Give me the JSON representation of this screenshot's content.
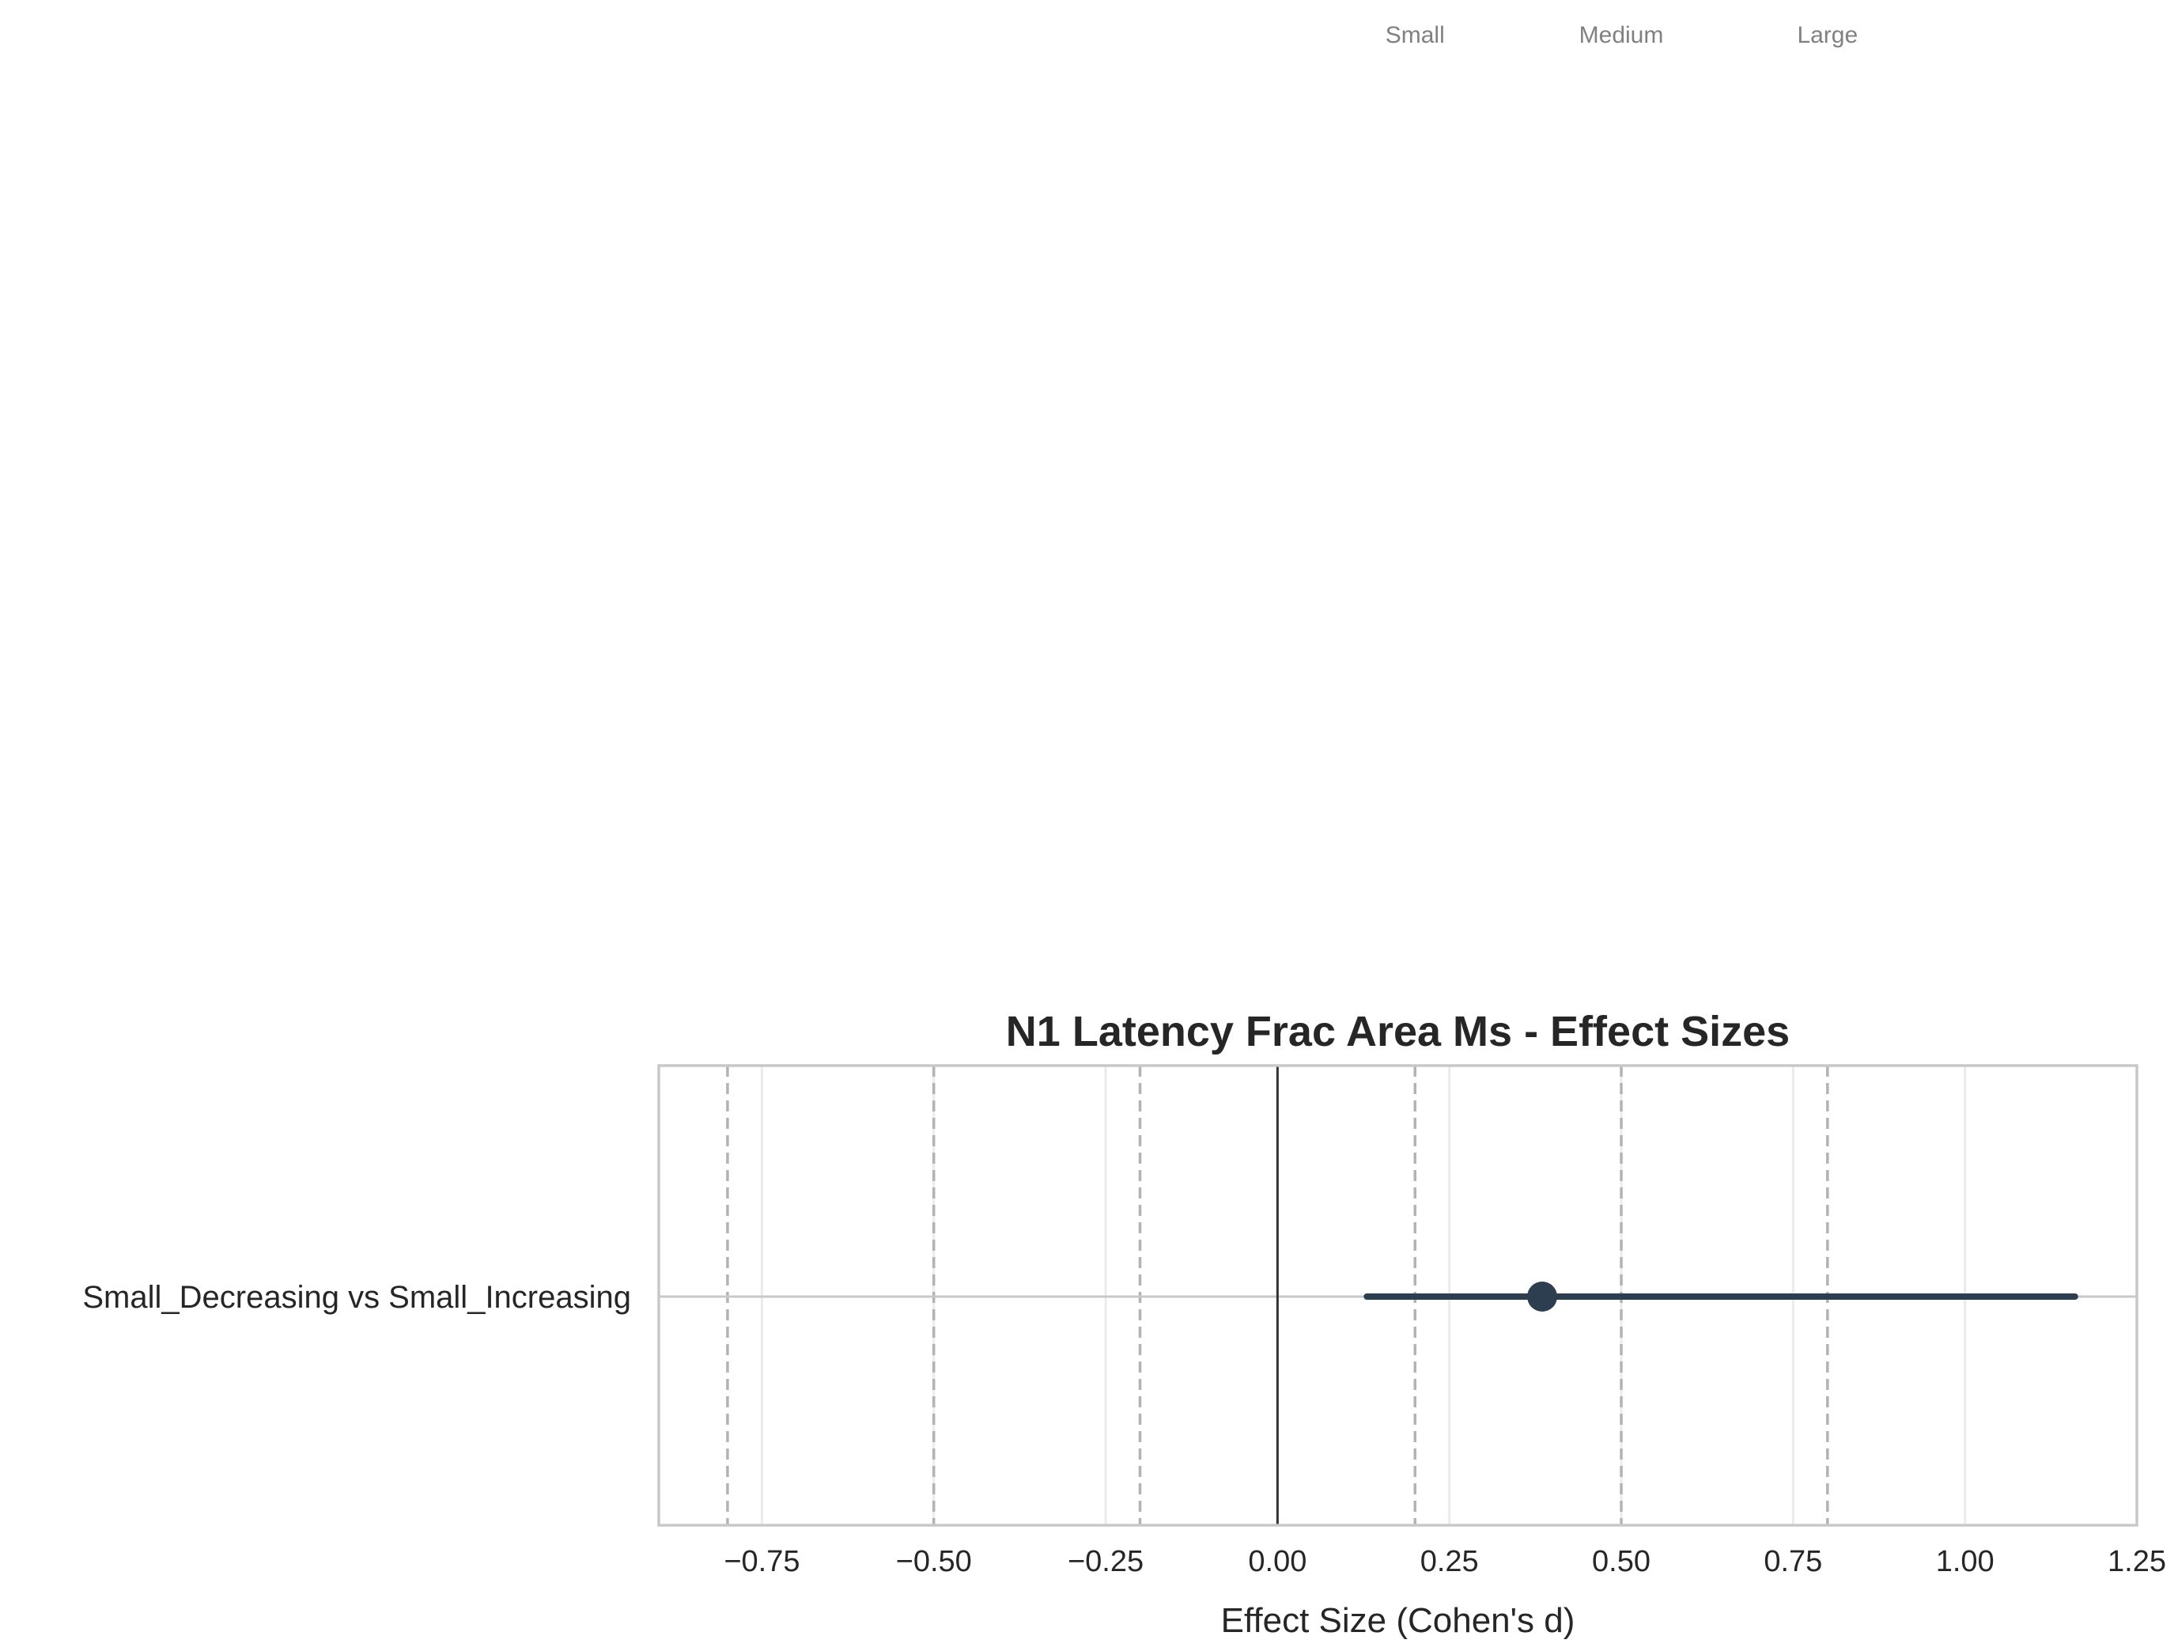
{
  "chart_data": {
    "type": "forest",
    "title": "N1 Latency Frac Area Ms - Effect Sizes",
    "xlabel": "Effect Size (Cohen's d)",
    "ylabel": "",
    "xlim": [
      -0.9,
      1.25
    ],
    "x_ticks": [
      "−0.75",
      "−0.50",
      "−0.25",
      "0.00",
      "0.25",
      "0.50",
      "0.75",
      "1.00",
      "1.25"
    ],
    "x_tick_values": [
      -0.75,
      -0.5,
      -0.25,
      0.0,
      0.25,
      0.5,
      0.75,
      1.0,
      1.25
    ],
    "grid": true,
    "comparisons": [
      {
        "label": "Small_Decreasing vs Small_Increasing",
        "d": 0.385,
        "ci": [
          0.13,
          1.16
        ]
      }
    ],
    "zero_line": 0.0,
    "reference_lines": [
      -0.8,
      -0.5,
      -0.2,
      0.2,
      0.5,
      0.8
    ],
    "reference_labels": [
      {
        "text": "Small",
        "value": 0.2
      },
      {
        "text": "Medium",
        "value": 0.5
      },
      {
        "text": "Large",
        "value": 0.8
      }
    ],
    "colors": {
      "marker": "#2c3e50",
      "reference": "#b3b3b3",
      "grid": "#ebebeb",
      "frame": "#c8c8c8",
      "zero": "#333333"
    }
  }
}
